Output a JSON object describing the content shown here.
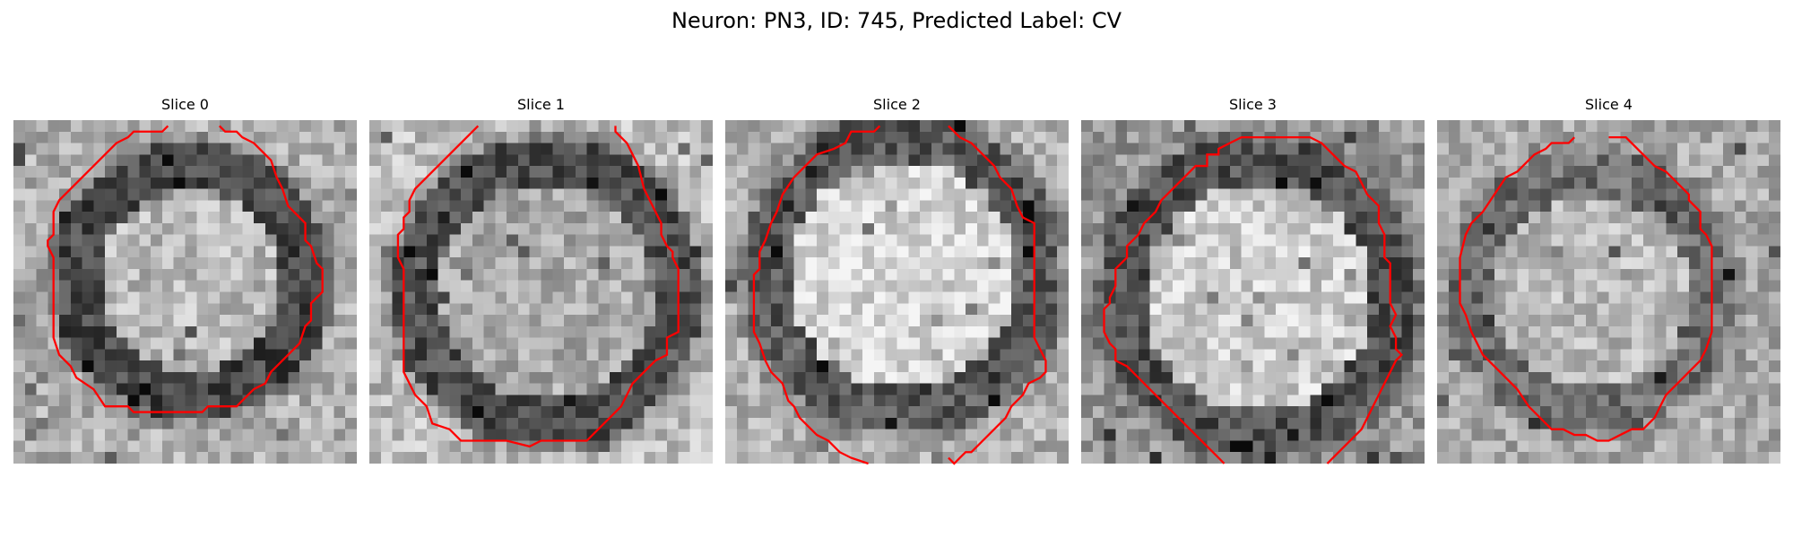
{
  "figure": {
    "title": "Neuron: PN3, ID: 745, Predicted Label: CV"
  },
  "panels": [
    {
      "title": "Slice 0"
    },
    {
      "title": "Slice 1"
    },
    {
      "title": "Slice 2"
    },
    {
      "title": "Slice 3"
    },
    {
      "title": "Slice 4"
    }
  ],
  "colors": {
    "contour": "#ff0000",
    "background": "#ffffff"
  }
}
